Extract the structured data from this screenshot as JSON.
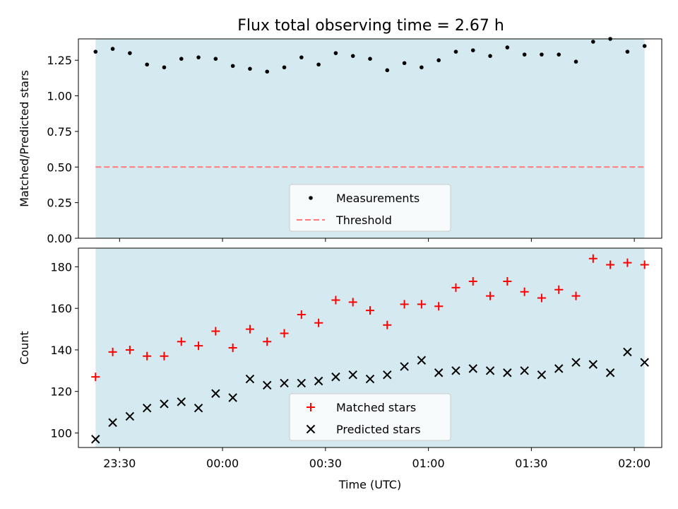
{
  "title": "Flux total observing time = 2.67 h",
  "chart_data": [
    {
      "type": "scatter",
      "ylabel": "Matched/Predicted stars",
      "xlabel": "",
      "ylim": [
        0,
        1.4
      ],
      "yticks": [
        0.0,
        0.25,
        0.5,
        0.75,
        1.0,
        1.25
      ],
      "ytick_labels": [
        "0.00",
        "0.25",
        "0.50",
        "0.75",
        "1.00",
        "1.25"
      ],
      "x_times": [
        "23:23",
        "23:28",
        "23:33",
        "23:38",
        "23:43",
        "23:48",
        "23:53",
        "23:58",
        "00:03",
        "00:08",
        "00:13",
        "00:18",
        "00:23",
        "00:28",
        "00:33",
        "00:38",
        "00:43",
        "00:48",
        "00:53",
        "00:58",
        "01:03",
        "01:08",
        "01:13",
        "01:18",
        "01:23",
        "01:28",
        "01:33",
        "01:38",
        "01:43",
        "01:48",
        "01:53",
        "01:58",
        "02:03"
      ],
      "series": [
        {
          "name": "Measurements",
          "marker": "dot",
          "color": "#000000",
          "values": [
            1.31,
            1.33,
            1.3,
            1.22,
            1.2,
            1.26,
            1.27,
            1.26,
            1.21,
            1.19,
            1.17,
            1.2,
            1.27,
            1.22,
            1.3,
            1.28,
            1.26,
            1.18,
            1.23,
            1.2,
            1.25,
            1.31,
            1.32,
            1.28,
            1.34,
            1.29,
            1.29,
            1.29,
            1.24,
            1.38,
            1.4,
            1.31,
            1.35
          ]
        }
      ],
      "threshold": {
        "name": "Threshold",
        "value": 0.5,
        "color": "#ff7b7b",
        "style": "dashed"
      },
      "shaded_span": {
        "start": "23:23",
        "end": "02:03",
        "color": "#d4eaf0"
      },
      "legend_position": "lower center",
      "grid": false
    },
    {
      "type": "scatter",
      "ylabel": "Count",
      "xlabel": "Time (UTC)",
      "ylim": [
        93,
        189
      ],
      "yticks": [
        100,
        120,
        140,
        160,
        180
      ],
      "ytick_labels": [
        "100",
        "120",
        "140",
        "160",
        "180"
      ],
      "xlim": [
        "23:18",
        "02:08"
      ],
      "xticks": [
        "23:30",
        "00:00",
        "00:30",
        "01:00",
        "01:30",
        "02:00"
      ],
      "x_times": [
        "23:23",
        "23:28",
        "23:33",
        "23:38",
        "23:43",
        "23:48",
        "23:53",
        "23:58",
        "00:03",
        "00:08",
        "00:13",
        "00:18",
        "00:23",
        "00:28",
        "00:33",
        "00:38",
        "00:43",
        "00:48",
        "00:53",
        "00:58",
        "01:03",
        "01:08",
        "01:13",
        "01:18",
        "01:23",
        "01:28",
        "01:33",
        "01:38",
        "01:43",
        "01:48",
        "01:53",
        "01:58",
        "02:03"
      ],
      "series": [
        {
          "name": "Matched stars",
          "marker": "plus",
          "color": "#ff0000",
          "values": [
            127,
            139,
            140,
            137,
            137,
            144,
            142,
            149,
            141,
            150,
            144,
            148,
            157,
            153,
            164,
            163,
            159,
            152,
            162,
            162,
            161,
            170,
            173,
            166,
            173,
            168,
            165,
            169,
            166,
            184,
            181,
            182,
            181
          ]
        },
        {
          "name": "Predicted stars",
          "marker": "x",
          "color": "#000000",
          "values": [
            97,
            105,
            108,
            112,
            114,
            115,
            112,
            119,
            117,
            126,
            123,
            124,
            124,
            125,
            127,
            128,
            126,
            128,
            132,
            135,
            129,
            130,
            131,
            130,
            129,
            130,
            128,
            131,
            134,
            133,
            129,
            139,
            134
          ]
        }
      ],
      "shaded_span": {
        "start": "23:23",
        "end": "02:03",
        "color": "#d4eaf0"
      },
      "legend_position": "lower center",
      "grid": false
    }
  ]
}
